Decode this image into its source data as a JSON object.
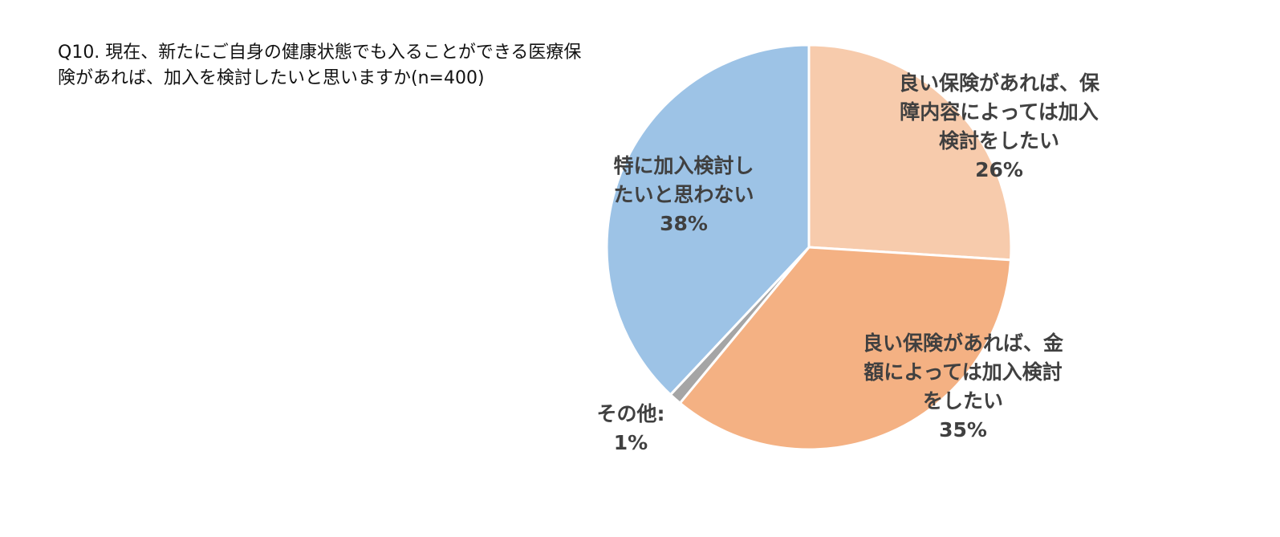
{
  "chart_data": {
    "type": "pie",
    "title": "Q10. 現在、新たにご自身の健康状態でも入ることができる医療保険があれば、加入を検討したいと思いますか(n=400)",
    "start_angle_deg": 0,
    "direction": "clockwise",
    "legend": "none",
    "slices": [
      {
        "label_lines": [
          "良い保険があれば、保",
          "障内容によっては加入",
          "検討をしたい"
        ],
        "value": 26,
        "value_label": "26%",
        "color": "#F7CBAC"
      },
      {
        "label_lines": [
          "良い保険があれば、金",
          "額によっては加入検討",
          "をしたい"
        ],
        "value": 35,
        "value_label": "35%",
        "color": "#F4B183"
      },
      {
        "label_lines": [
          "その他:"
        ],
        "value": 1,
        "value_label": "1%",
        "color": "#A5A5A5"
      },
      {
        "label_lines": [
          "特に加入検討し",
          "たいと思わない"
        ],
        "value": 38,
        "value_label": "38%",
        "color": "#9DC3E6"
      }
    ]
  }
}
